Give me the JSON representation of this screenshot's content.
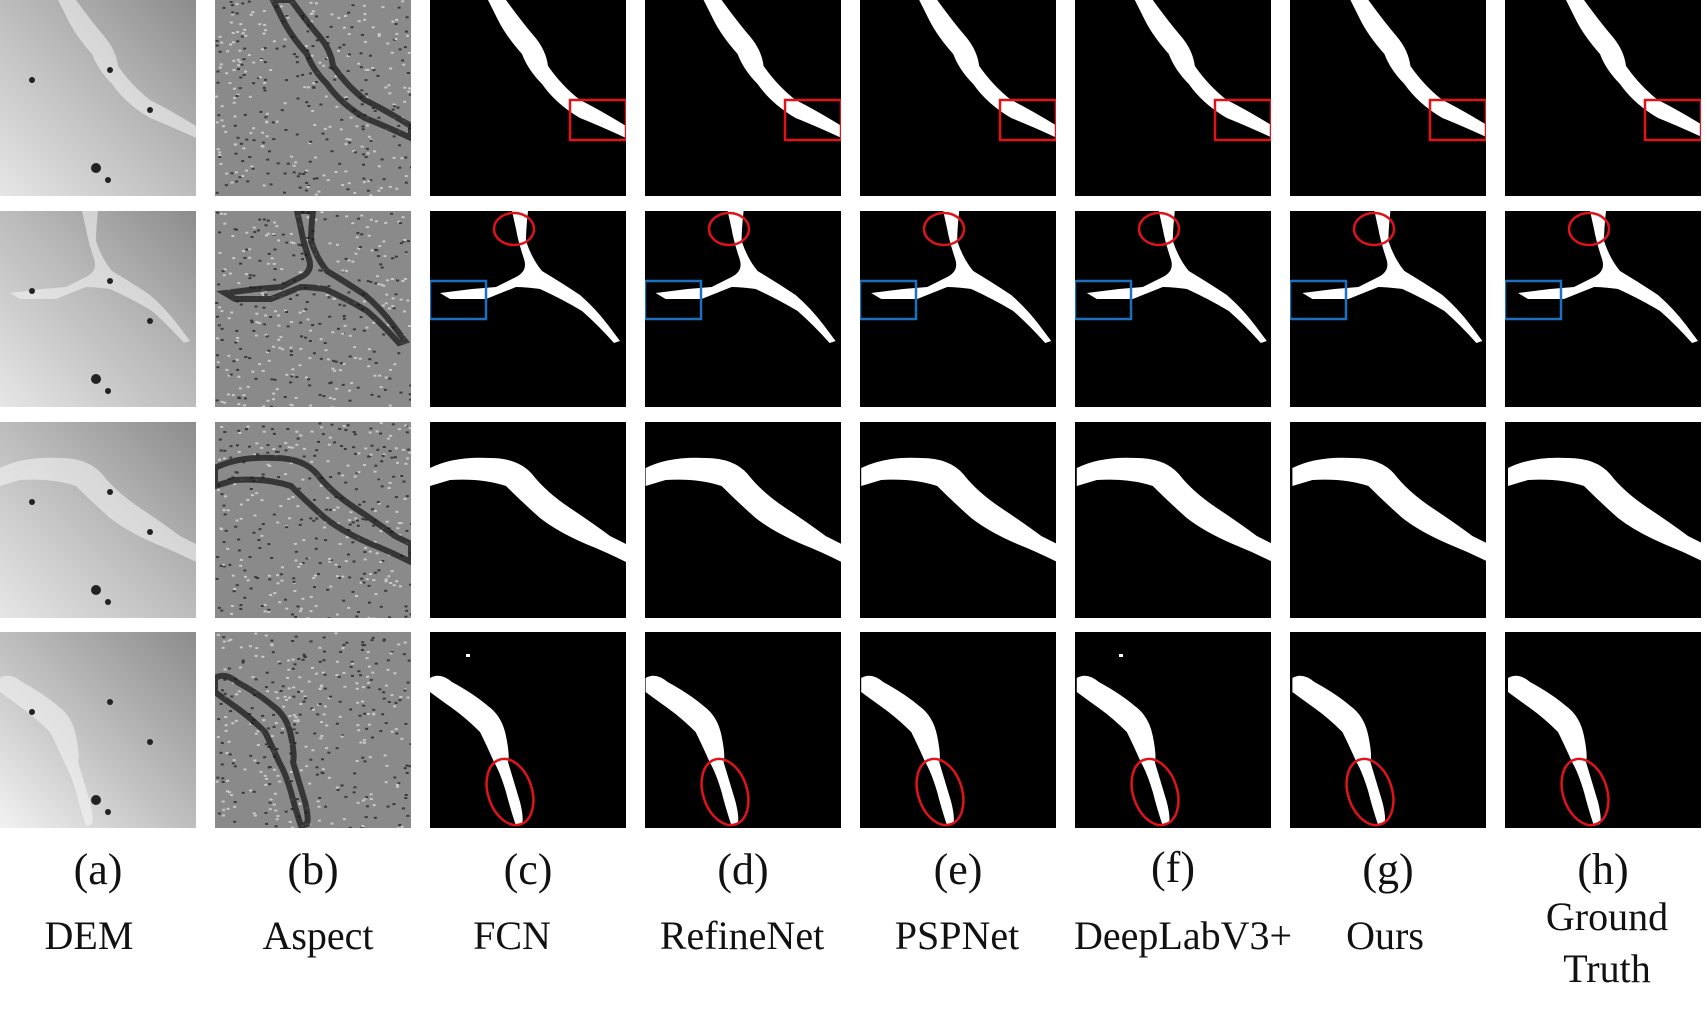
{
  "figure": {
    "columns": [
      {
        "id": "a",
        "letter": "(a)",
        "name": "DEM",
        "kind": "dem"
      },
      {
        "id": "b",
        "letter": "(b)",
        "name": "Aspect",
        "kind": "aspect"
      },
      {
        "id": "c",
        "letter": "(c)",
        "name": "FCN",
        "kind": "mask"
      },
      {
        "id": "d",
        "letter": "(d)",
        "name": "RefineNet",
        "kind": "mask"
      },
      {
        "id": "e",
        "letter": "(e)",
        "name": "PSPNet",
        "kind": "mask"
      },
      {
        "id": "f",
        "letter": "(f)",
        "name": "DeepLabV3+",
        "kind": "mask"
      },
      {
        "id": "g",
        "letter": "(g)",
        "name": "Ours",
        "kind": "mask"
      },
      {
        "id": "h",
        "letter": "(h)",
        "name": "Ground\nTruth",
        "kind": "mask"
      }
    ],
    "rows": 4,
    "colors": {
      "highlight_red": "#e0131a",
      "highlight_blue": "#1f6fc0",
      "mask_background": "#000000",
      "mask_foreground": "#ffffff"
    },
    "annotations": [
      {
        "row": 1,
        "shape": "rectangle",
        "color": "red"
      },
      {
        "row": 2,
        "shape": "ellipse",
        "color": "red"
      },
      {
        "row": 2,
        "shape": "rectangle",
        "color": "blue"
      },
      {
        "row": 4,
        "shape": "ellipse",
        "color": "red"
      }
    ]
  }
}
